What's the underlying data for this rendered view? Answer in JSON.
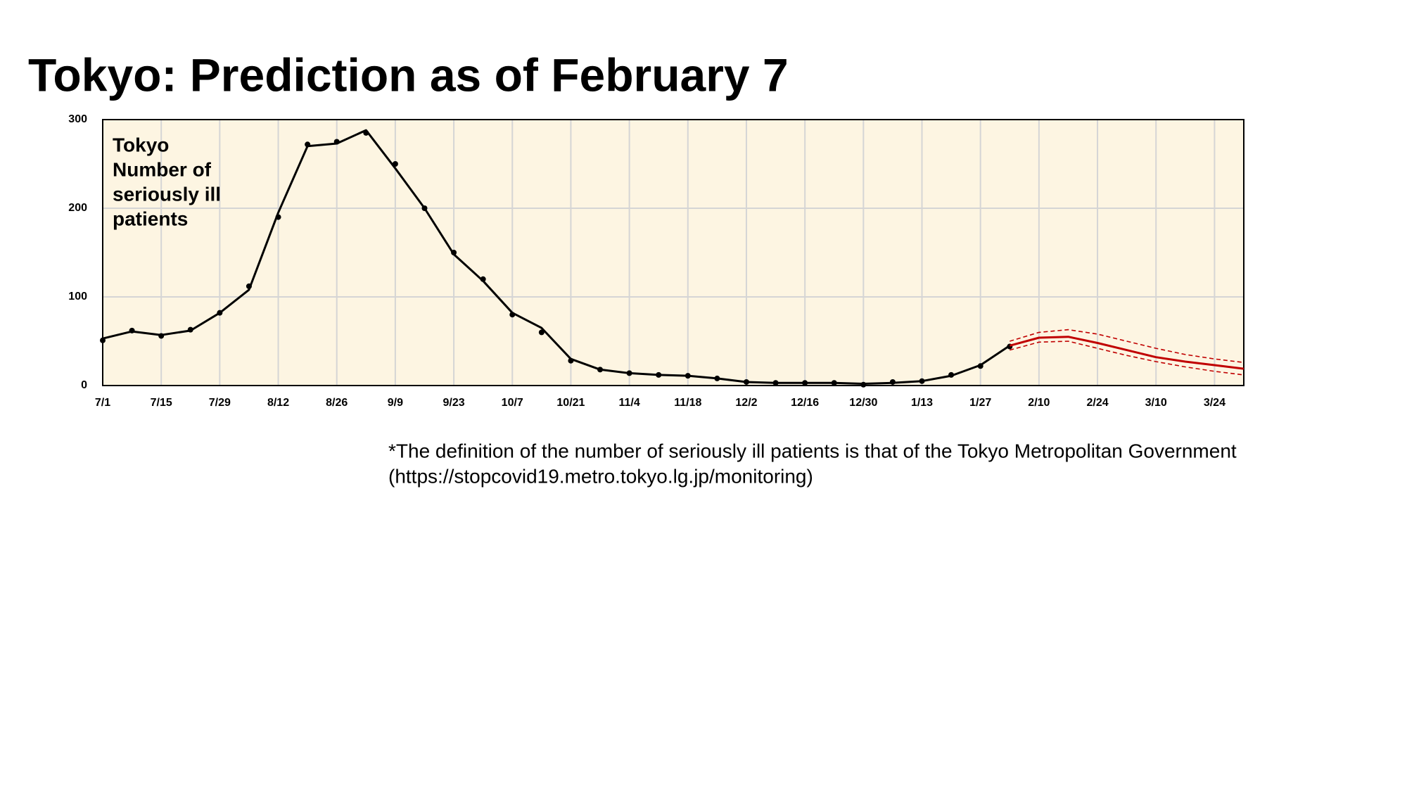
{
  "chart_data": {
    "type": "line",
    "title": "Tokyo: Prediction as of February 7",
    "annotation": [
      "Tokyo",
      "Number of",
      "seriously ill",
      "patients"
    ],
    "note": [
      "*The definition of the number of seriously ill patients is that of the Tokyo Metropolitan Government",
      "(https://stopcovid19.metro.tokyo.lg.jp/monitoring)"
    ],
    "categories": [
      "7/1",
      null,
      "7/15",
      null,
      "7/29",
      null,
      "8/12",
      null,
      "8/26",
      null,
      "9/9",
      null,
      "9/23",
      null,
      "10/7",
      null,
      "10/21",
      null,
      "11/4",
      null,
      "11/18",
      null,
      "12/2",
      null,
      "12/16",
      null,
      "12/30",
      null,
      "1/13",
      null,
      "1/27",
      null,
      "2/10",
      null,
      "2/24",
      null,
      "3/10",
      null,
      "3/24",
      null
    ],
    "series": [
      {
        "style": "dots",
        "color": "#000000",
        "values": [
          51,
          62,
          56,
          63,
          82,
          112,
          190,
          272,
          275,
          285,
          250,
          200,
          150,
          120,
          80,
          60,
          28,
          18,
          14,
          12,
          11,
          8,
          4,
          3,
          3,
          3,
          1,
          4,
          5,
          12,
          22,
          44,
          null,
          null,
          null,
          null,
          null,
          null,
          null,
          null
        ]
      },
      {
        "style": "solid",
        "color": "#000000",
        "values": [
          53,
          61,
          57,
          62,
          82,
          108,
          195,
          270,
          273,
          288,
          245,
          200,
          148,
          118,
          82,
          65,
          30,
          18,
          14,
          12,
          11,
          8,
          4,
          3,
          3,
          3,
          2,
          3,
          5,
          11,
          23,
          45,
          null,
          null,
          null,
          null,
          null,
          null,
          null,
          null
        ]
      },
      {
        "style": "solid",
        "color": "#c00000",
        "values": [
          null,
          null,
          null,
          null,
          null,
          null,
          null,
          null,
          null,
          null,
          null,
          null,
          null,
          null,
          null,
          null,
          null,
          null,
          null,
          null,
          null,
          null,
          null,
          null,
          null,
          null,
          null,
          null,
          null,
          null,
          null,
          45,
          54,
          55,
          48,
          40,
          32,
          27,
          23,
          19
        ]
      },
      {
        "style": "dashed",
        "color": "#c00000",
        "values": [
          null,
          null,
          null,
          null,
          null,
          null,
          null,
          null,
          null,
          null,
          null,
          null,
          null,
          null,
          null,
          null,
          null,
          null,
          null,
          null,
          null,
          null,
          null,
          null,
          null,
          null,
          null,
          null,
          null,
          null,
          null,
          50,
          60,
          63,
          58,
          50,
          42,
          35,
          30,
          26
        ]
      },
      {
        "style": "dashed",
        "color": "#c00000",
        "values": [
          null,
          null,
          null,
          null,
          null,
          null,
          null,
          null,
          null,
          null,
          null,
          null,
          null,
          null,
          null,
          null,
          null,
          null,
          null,
          null,
          null,
          null,
          null,
          null,
          null,
          null,
          null,
          null,
          null,
          null,
          null,
          40,
          49,
          50,
          42,
          34,
          27,
          21,
          16,
          12
        ]
      }
    ],
    "ylim": [
      0,
      300
    ],
    "yticks": [
      0,
      100,
      200,
      300
    ],
    "grid": true,
    "background": "#fdf5e2"
  }
}
